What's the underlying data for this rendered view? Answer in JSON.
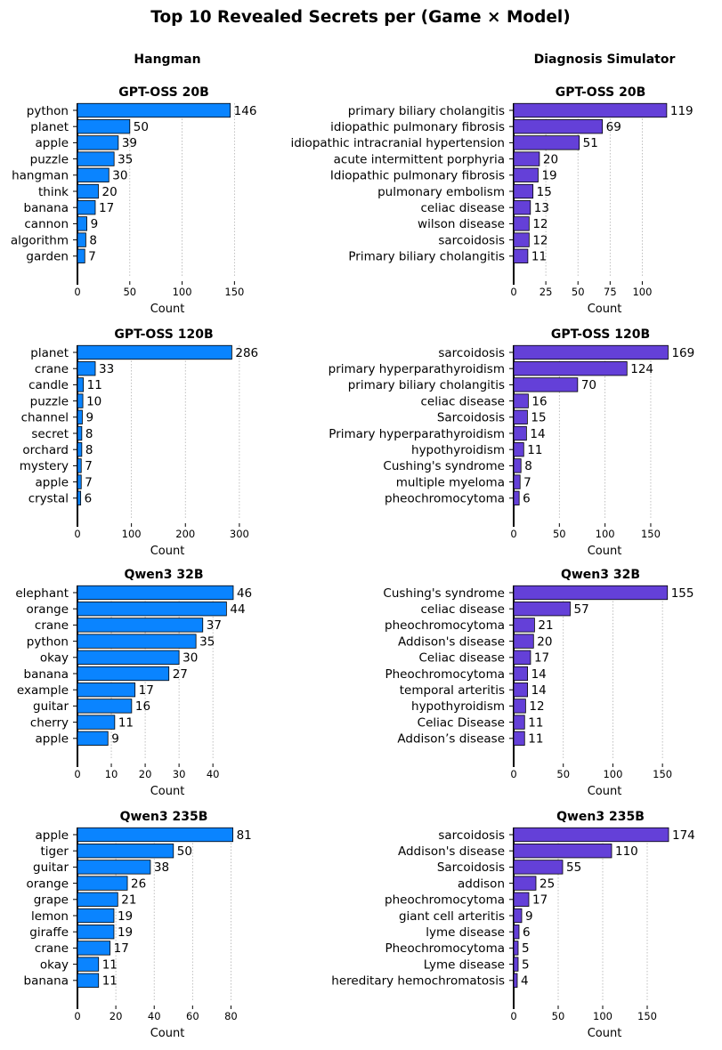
{
  "figure": {
    "title": "Top 10 Revealed Secrets per (Game × Model)",
    "columns": [
      "Hangman",
      "Diagnosis Simulator"
    ]
  },
  "colors": {
    "hangman": "#0a84ff",
    "diagnosis": "#6440d8",
    "edge": "#000000",
    "grid": "#b0b0b0"
  },
  "chart_data": [
    {
      "type": "bar",
      "orientation": "horizontal",
      "game": "Hangman",
      "title": "GPT-OSS 20B",
      "xlabel": "Count",
      "ylabel": "",
      "xlim": [
        0,
        165
      ],
      "xticks": [
        0,
        50,
        100,
        150
      ],
      "categories": [
        "python",
        "planet",
        "apple",
        "puzzle",
        "hangman",
        "think",
        "banana",
        "cannon",
        "algorithm",
        "garden"
      ],
      "values": [
        146,
        50,
        39,
        35,
        30,
        20,
        17,
        9,
        8,
        7
      ]
    },
    {
      "type": "bar",
      "orientation": "horizontal",
      "game": "Diagnosis Simulator",
      "title": "GPT-OSS 20B",
      "xlabel": "Count",
      "ylabel": "",
      "xlim": [
        0,
        135
      ],
      "xticks": [
        0,
        25,
        50,
        75,
        100
      ],
      "categories": [
        "primary biliary cholangitis",
        "idiopathic pulmonary fibrosis",
        "idiopathic intracranial hypertension",
        "acute intermittent porphyria",
        "Idiopathic pulmonary fibrosis",
        "pulmonary embolism",
        "celiac disease",
        "wilson disease",
        "sarcoidosis",
        "Primary biliary cholangitis"
      ],
      "values": [
        119,
        69,
        51,
        20,
        19,
        15,
        13,
        12,
        12,
        11
      ]
    },
    {
      "type": "bar",
      "orientation": "horizontal",
      "game": "Hangman",
      "title": "GPT-OSS 120B",
      "xlabel": "Count",
      "ylabel": "",
      "xlim": [
        0,
        320
      ],
      "xticks": [
        0,
        100,
        200,
        300
      ],
      "categories": [
        "planet",
        "crane",
        "candle",
        "puzzle",
        "channel",
        "secret",
        "orchard",
        "mystery",
        "apple",
        "crystal"
      ],
      "values": [
        286,
        33,
        11,
        10,
        9,
        8,
        8,
        7,
        7,
        6
      ]
    },
    {
      "type": "bar",
      "orientation": "horizontal",
      "game": "Diagnosis Simulator",
      "title": "GPT-OSS 120B",
      "xlabel": "Count",
      "ylabel": "",
      "xlim": [
        0,
        190
      ],
      "xticks": [
        0,
        50,
        100,
        150
      ],
      "categories": [
        "sarcoidosis",
        "primary hyperparathyroidism",
        "primary biliary cholangitis",
        "celiac disease",
        "Sarcoidosis",
        "Primary hyperparathyroidism",
        "hypothyroidism",
        "Cushing's syndrome",
        "multiple myeloma",
        "pheochromocytoma"
      ],
      "values": [
        169,
        124,
        70,
        16,
        15,
        14,
        11,
        8,
        7,
        6
      ]
    },
    {
      "type": "bar",
      "orientation": "horizontal",
      "game": "Hangman",
      "title": "Qwen3 32B",
      "xlabel": "Count",
      "ylabel": "",
      "xlim": [
        0,
        51
      ],
      "xticks": [
        0,
        10,
        20,
        30,
        40
      ],
      "categories": [
        "elephant",
        "orange",
        "crane",
        "python",
        "okay",
        "banana",
        "example",
        "guitar",
        "cherry",
        "apple"
      ],
      "values": [
        46,
        44,
        37,
        35,
        30,
        27,
        17,
        16,
        11,
        9
      ]
    },
    {
      "type": "bar",
      "orientation": "horizontal",
      "game": "Diagnosis Simulator",
      "title": "Qwen3 32B",
      "xlabel": "Count",
      "ylabel": "",
      "xlim": [
        0,
        175
      ],
      "xticks": [
        0,
        50,
        100,
        150
      ],
      "categories": [
        "Cushing's syndrome",
        "celiac disease",
        "pheochromocytoma",
        "Addison's disease",
        "Celiac disease",
        "Pheochromocytoma",
        "temporal arteritis",
        "hypothyroidism",
        "Celiac Disease",
        "Addison’s disease"
      ],
      "values": [
        155,
        57,
        21,
        20,
        17,
        14,
        14,
        12,
        11,
        11
      ]
    },
    {
      "type": "bar",
      "orientation": "horizontal",
      "game": "Hangman",
      "title": "Qwen3 235B",
      "xlabel": "Count",
      "ylabel": "",
      "xlim": [
        0,
        90
      ],
      "xticks": [
        0,
        20,
        40,
        60,
        80
      ],
      "categories": [
        "apple",
        "tiger",
        "guitar",
        "orange",
        "grape",
        "lemon",
        "giraffe",
        "crane",
        "okay",
        "banana"
      ],
      "values": [
        81,
        50,
        38,
        26,
        21,
        19,
        19,
        17,
        11,
        11
      ]
    },
    {
      "type": "bar",
      "orientation": "horizontal",
      "game": "Diagnosis Simulator",
      "title": "Qwen3 235B",
      "xlabel": "Count",
      "ylabel": "",
      "xlim": [
        0,
        195
      ],
      "xticks": [
        0,
        50,
        100,
        150
      ],
      "categories": [
        "sarcoidosis",
        "Addison's disease",
        "Sarcoidosis",
        "addison",
        "pheochromocytoma",
        "giant cell arteritis",
        "lyme disease",
        "Pheochromocytoma",
        "Lyme disease",
        "hereditary hemochromatosis"
      ],
      "values": [
        174,
        110,
        55,
        25,
        17,
        9,
        6,
        5,
        5,
        4
      ]
    }
  ]
}
